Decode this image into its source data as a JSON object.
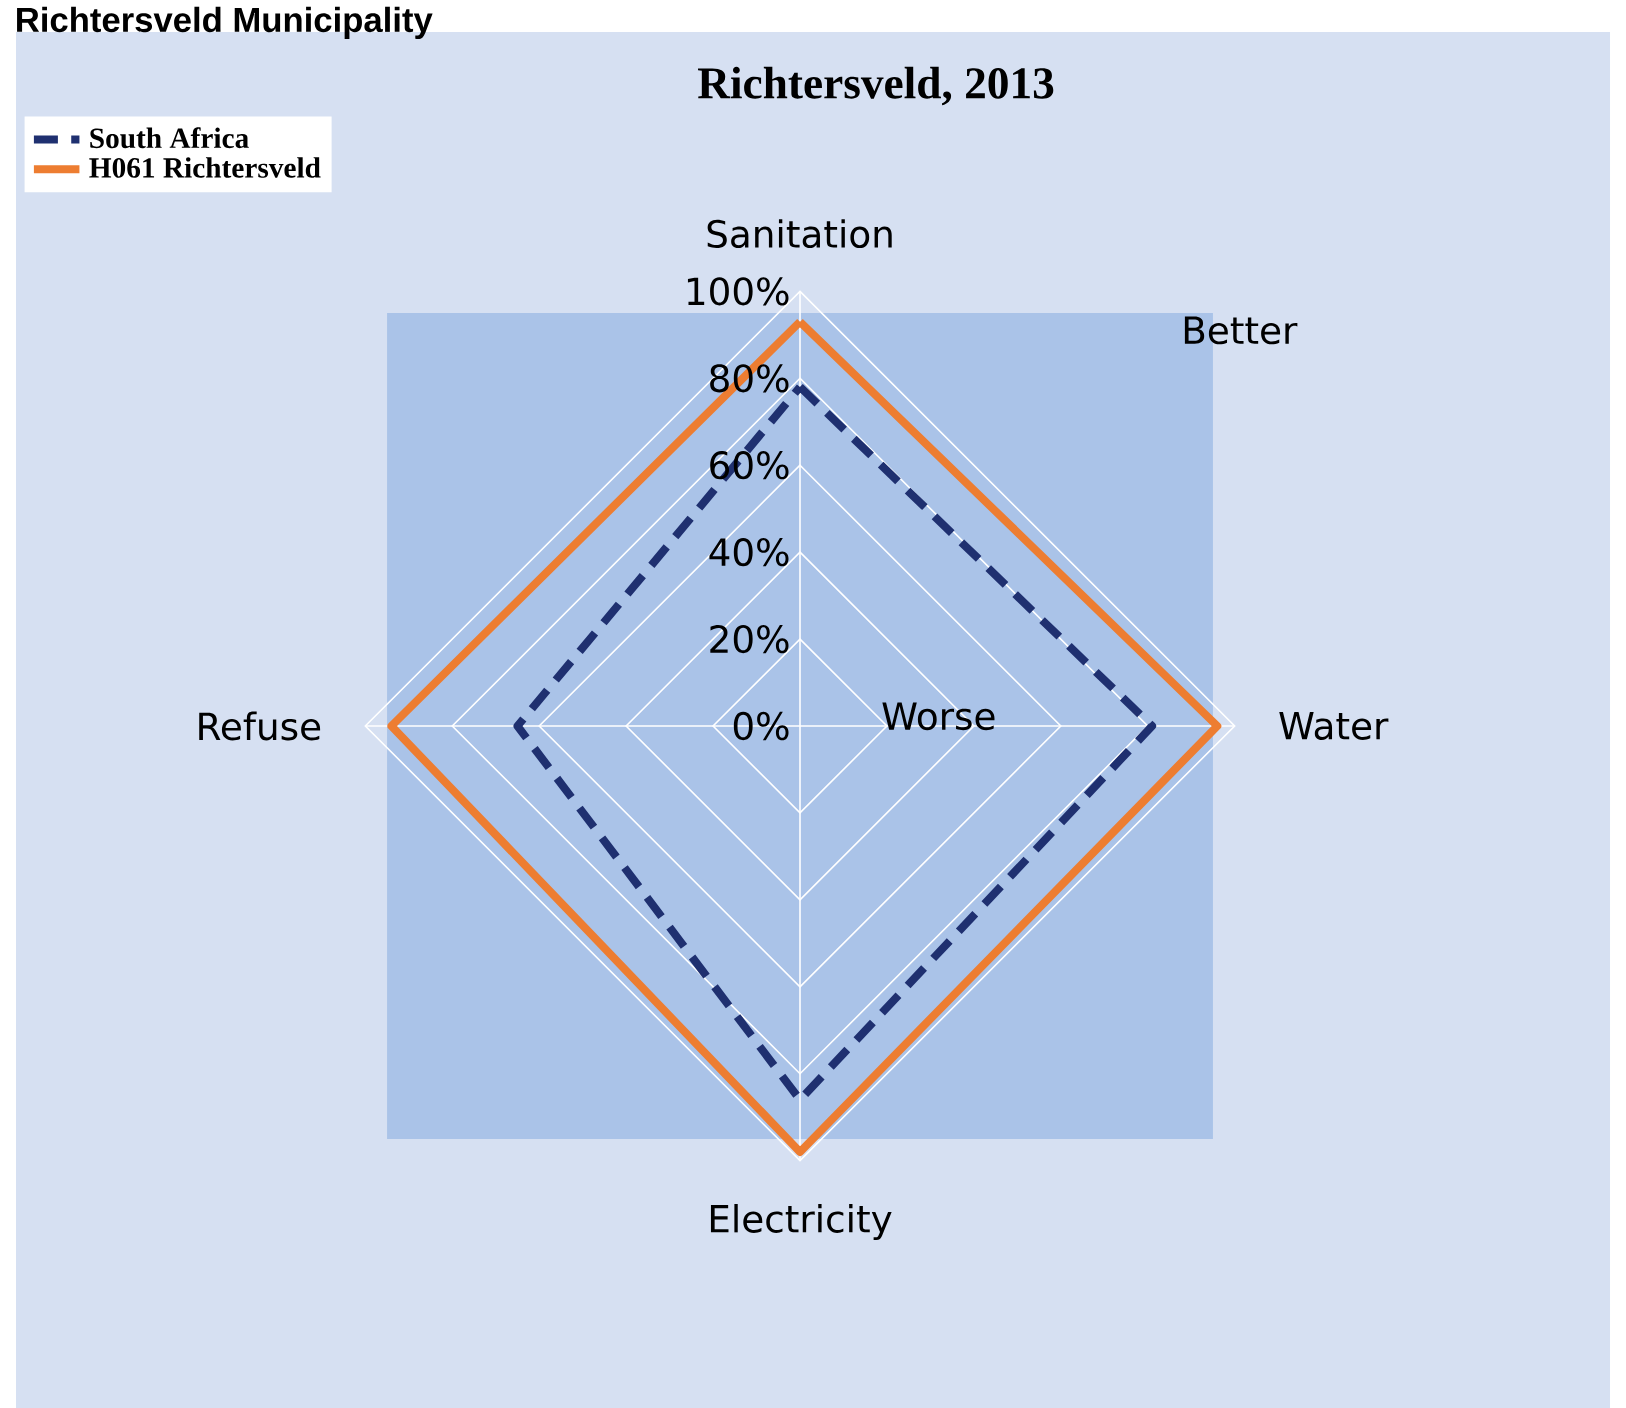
{
  "chart_data": {
    "type": "radar",
    "title": "Richtersveld, 2013",
    "subtitle": "Richtersveld Municipality",
    "categories": [
      "Sanitation",
      "Water",
      "Electricity",
      "Refuse"
    ],
    "ylim": [
      0,
      100
    ],
    "yticks": [
      {
        "value": 0,
        "label": "0%"
      },
      {
        "value": 20,
        "label": "20%"
      },
      {
        "value": 40,
        "label": "40%"
      },
      {
        "value": 60,
        "label": "60%"
      },
      {
        "value": 80,
        "label": "80%"
      },
      {
        "value": 100,
        "label": "100%"
      }
    ],
    "grid": true,
    "legend": "top left",
    "marker": "none",
    "series": [
      {
        "name": "South Africa",
        "color": "#1f3070",
        "line_style": "dashed",
        "values": [
          78,
          81,
          86,
          65
        ]
      },
      {
        "name": "H061 Richtersveld",
        "color": "#ed7d31",
        "line_style": "solid",
        "values": [
          93,
          96,
          98,
          94
        ]
      }
    ],
    "annotations": [
      "Better",
      "Worse"
    ]
  }
}
